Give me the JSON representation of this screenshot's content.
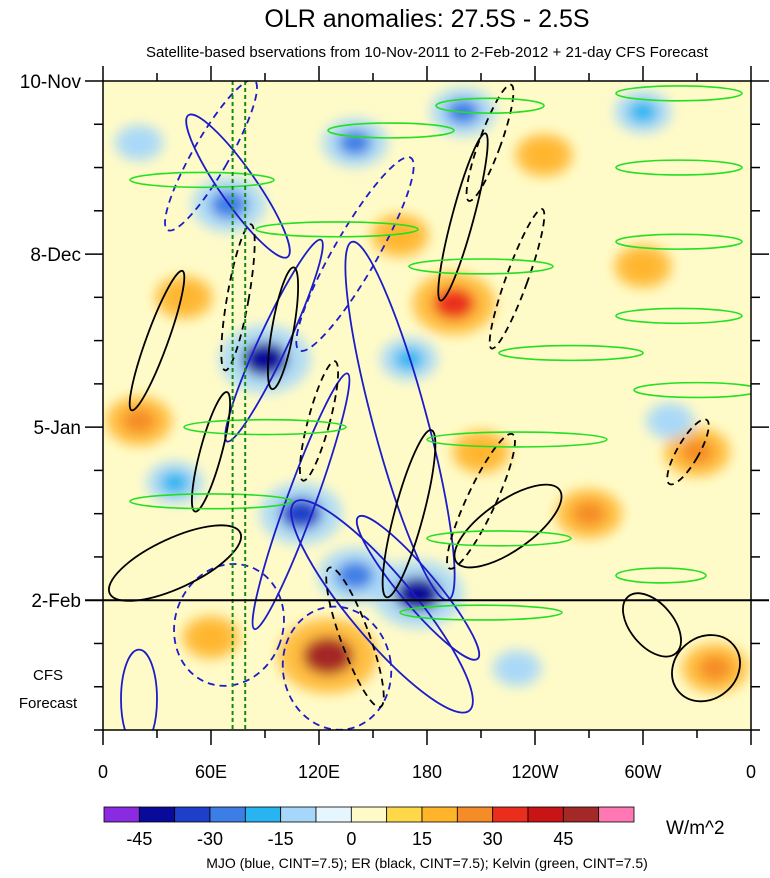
{
  "chart_data": {
    "type": "heatmap",
    "title": "OLR anomalies: 27.5S - 2.5S",
    "subtitle": "Satellite-based bservations from 10-Nov-2011 to 2-Feb-2012 + 21-day CFS Forecast",
    "x_ticks": [
      {
        "lon": 0,
        "label": "0"
      },
      {
        "lon": 60,
        "label": "60E"
      },
      {
        "lon": 120,
        "label": "120E"
      },
      {
        "lon": 180,
        "label": "180"
      },
      {
        "lon": 240,
        "label": "120W"
      },
      {
        "lon": 300,
        "label": "60W"
      },
      {
        "lon": 360,
        "label": "0"
      }
    ],
    "xlim": [
      0,
      360
    ],
    "y_ticks": [
      {
        "day": 0,
        "label": "10-Nov"
      },
      {
        "day": 28,
        "label": "8-Dec"
      },
      {
        "day": 56,
        "label": "5-Jan"
      },
      {
        "day": 84,
        "label": "2-Feb"
      }
    ],
    "ylim_days": [
      0,
      105
    ],
    "forecast_start_day": 84,
    "forecast_label_line1": "CFS",
    "forecast_label_line2": "Forecast",
    "reference_lons": [
      72,
      79
    ],
    "colorbar": {
      "colors": [
        "#8a2be2",
        "#0a0a9a",
        "#1e3fc8",
        "#3c7ee6",
        "#28b4f0",
        "#a6d7fa",
        "#e6f6ff",
        "#fffbc8",
        "#ffd84a",
        "#ffb42a",
        "#f58c28",
        "#eb2d1e",
        "#c81414",
        "#a52828",
        "#ff78b4"
      ],
      "tick_values": [
        -45,
        -30,
        -15,
        0,
        15,
        30,
        45
      ],
      "tick_labels": [
        "-45",
        "-30",
        "-15",
        "0",
        "15",
        "30",
        "45"
      ],
      "units": "W/m^2"
    },
    "footer": "MJO (blue, CINT=7.5); ER (black, CINT=7.5); Kelvin (green, CINT=7.5)",
    "contour_colors": {
      "mjo": "#1c1cc8",
      "er": "#000000",
      "kelvin": "#22e022"
    },
    "anomaly_blobs": [
      {
        "lon": 125,
        "day": 93,
        "value": 45
      },
      {
        "lon": 195,
        "day": 36,
        "value": 35
      },
      {
        "lon": 270,
        "day": 70,
        "value": 25
      },
      {
        "lon": 245,
        "day": 12,
        "value": 20
      },
      {
        "lon": 300,
        "day": 30,
        "value": 20
      },
      {
        "lon": 330,
        "day": 60,
        "value": 25
      },
      {
        "lon": 340,
        "day": 95,
        "value": 25
      },
      {
        "lon": 20,
        "day": 55,
        "value": 25
      },
      {
        "lon": 45,
        "day": 35,
        "value": 20
      },
      {
        "lon": 210,
        "day": 60,
        "value": 20
      },
      {
        "lon": 60,
        "day": 90,
        "value": 20
      },
      {
        "lon": 165,
        "day": 25,
        "value": 20
      },
      {
        "lon": 90,
        "day": 45,
        "value": -40
      },
      {
        "lon": 110,
        "day": 70,
        "value": -35
      },
      {
        "lon": 175,
        "day": 83,
        "value": -40
      },
      {
        "lon": 70,
        "day": 20,
        "value": -30
      },
      {
        "lon": 140,
        "day": 80,
        "value": -30
      },
      {
        "lon": 140,
        "day": 10,
        "value": -25
      },
      {
        "lon": 200,
        "day": 5,
        "value": -25
      },
      {
        "lon": 40,
        "day": 65,
        "value": -20
      },
      {
        "lon": 170,
        "day": 45,
        "value": -20
      },
      {
        "lon": 300,
        "day": 5,
        "value": -20
      },
      {
        "lon": 315,
        "day": 55,
        "value": -15
      },
      {
        "lon": 230,
        "day": 95,
        "value": -15
      },
      {
        "lon": 20,
        "day": 10,
        "value": -15
      }
    ],
    "mjo_contours": [
      {
        "lon": 75,
        "day": 17,
        "rlon": 10,
        "rday": 14,
        "rot": -35,
        "dash": false
      },
      {
        "lon": 95,
        "day": 42,
        "rlon": 8,
        "rday": 18,
        "rot": 25,
        "dash": false
      },
      {
        "lon": 110,
        "day": 68,
        "rlon": 8,
        "rday": 22,
        "rot": 20,
        "dash": false
      },
      {
        "lon": 175,
        "day": 82,
        "rlon": 10,
        "rday": 15,
        "rot": -40,
        "dash": false
      },
      {
        "lon": 155,
        "day": 85,
        "rlon": 18,
        "rday": 22,
        "rot": -40,
        "dash": false
      },
      {
        "lon": 165,
        "day": 55,
        "rlon": 15,
        "rday": 30,
        "rot": -15,
        "dash": false
      },
      {
        "lon": 20,
        "day": 100,
        "rlon": 10,
        "rday": 8,
        "rot": 0,
        "dash": false
      },
      {
        "lon": 130,
        "day": 95,
        "rlon": 30,
        "rday": 10,
        "rot": -10,
        "dash": true
      },
      {
        "lon": 70,
        "day": 88,
        "rlon": 30,
        "rday": 10,
        "rot": 20,
        "dash": true
      },
      {
        "lon": 60,
        "day": 12,
        "rlon": 10,
        "rday": 14,
        "rot": 30,
        "dash": true
      },
      {
        "lon": 140,
        "day": 28,
        "rlon": 12,
        "rday": 18,
        "rot": 30,
        "dash": true
      }
    ],
    "er_contours": [
      {
        "lon": 30,
        "day": 42,
        "rlon": 6,
        "rday": 12,
        "rot": 20,
        "dash": false
      },
      {
        "lon": 170,
        "day": 70,
        "rlon": 8,
        "rday": 14,
        "rot": 15,
        "dash": false
      },
      {
        "lon": 225,
        "day": 72,
        "rlon": 35,
        "rday": 4,
        "rot": -35,
        "dash": false
      },
      {
        "lon": 40,
        "day": 78,
        "rlon": 40,
        "rday": 4,
        "rot": -25,
        "dash": false
      },
      {
        "lon": 305,
        "day": 88,
        "rlon": 12,
        "rday": 6,
        "rot": -40,
        "dash": false
      },
      {
        "lon": 335,
        "day": 95,
        "rlon": 20,
        "rday": 5,
        "rot": -40,
        "dash": false
      },
      {
        "lon": 200,
        "day": 22,
        "rlon": 6,
        "rday": 14,
        "rot": 15,
        "dash": false
      },
      {
        "lon": 60,
        "day": 60,
        "rlon": 6,
        "rday": 10,
        "rot": 15,
        "dash": false
      },
      {
        "lon": 100,
        "day": 40,
        "rlon": 6,
        "rday": 10,
        "rot": 10,
        "dash": false
      },
      {
        "lon": 140,
        "day": 90,
        "rlon": 8,
        "rday": 12,
        "rot": -20,
        "dash": true
      },
      {
        "lon": 230,
        "day": 32,
        "rlon": 6,
        "rday": 12,
        "rot": 20,
        "dash": true
      },
      {
        "lon": 120,
        "day": 55,
        "rlon": 6,
        "rday": 10,
        "rot": 15,
        "dash": true
      },
      {
        "lon": 75,
        "day": 35,
        "rlon": 6,
        "rday": 12,
        "rot": 10,
        "dash": true
      },
      {
        "lon": 215,
        "day": 10,
        "rlon": 6,
        "rday": 10,
        "rot": 20,
        "dash": true
      },
      {
        "lon": 325,
        "day": 60,
        "rlon": 6,
        "rday": 6,
        "rot": 30,
        "dash": true
      },
      {
        "lon": 210,
        "day": 68,
        "rlon": 8,
        "rday": 12,
        "rot": 25,
        "dash": true
      }
    ],
    "kelvin_contours": [
      {
        "lon": 215,
        "day": 4,
        "rlon": 30,
        "rday": 1.2,
        "rot": 0,
        "dash": false
      },
      {
        "lon": 160,
        "day": 8,
        "rlon": 35,
        "rday": 1.2,
        "rot": 0,
        "dash": false
      },
      {
        "lon": 55,
        "day": 16,
        "rlon": 40,
        "rday": 1.2,
        "rot": 0,
        "dash": false
      },
      {
        "lon": 130,
        "day": 24,
        "rlon": 45,
        "rday": 1.2,
        "rot": 0,
        "dash": false
      },
      {
        "lon": 210,
        "day": 30,
        "rlon": 40,
        "rday": 1.2,
        "rot": 0,
        "dash": false
      },
      {
        "lon": 260,
        "day": 44,
        "rlon": 40,
        "rday": 1.2,
        "rot": 0,
        "dash": false
      },
      {
        "lon": 90,
        "day": 56,
        "rlon": 45,
        "rday": 1.2,
        "rot": 0,
        "dash": false
      },
      {
        "lon": 230,
        "day": 58,
        "rlon": 50,
        "rday": 1.2,
        "rot": 0,
        "dash": false
      },
      {
        "lon": 60,
        "day": 68,
        "rlon": 45,
        "rday": 1.2,
        "rot": 0,
        "dash": false
      },
      {
        "lon": 220,
        "day": 74,
        "rlon": 40,
        "rday": 1.2,
        "rot": 0,
        "dash": false
      },
      {
        "lon": 210,
        "day": 86,
        "rlon": 45,
        "rday": 1.2,
        "rot": 0,
        "dash": false
      },
      {
        "lon": 320,
        "day": 2,
        "rlon": 35,
        "rday": 1.2,
        "rot": 0,
        "dash": false
      },
      {
        "lon": 320,
        "day": 14,
        "rlon": 35,
        "rday": 1.2,
        "rot": 0,
        "dash": false
      },
      {
        "lon": 320,
        "day": 26,
        "rlon": 35,
        "rday": 1.2,
        "rot": 0,
        "dash": false
      },
      {
        "lon": 320,
        "day": 38,
        "rlon": 35,
        "rday": 1.2,
        "rot": 0,
        "dash": false
      },
      {
        "lon": 330,
        "day": 50,
        "rlon": 35,
        "rday": 1.2,
        "rot": 0,
        "dash": false
      },
      {
        "lon": 310,
        "day": 80,
        "rlon": 25,
        "rday": 1.2,
        "rot": 0,
        "dash": false
      }
    ]
  }
}
